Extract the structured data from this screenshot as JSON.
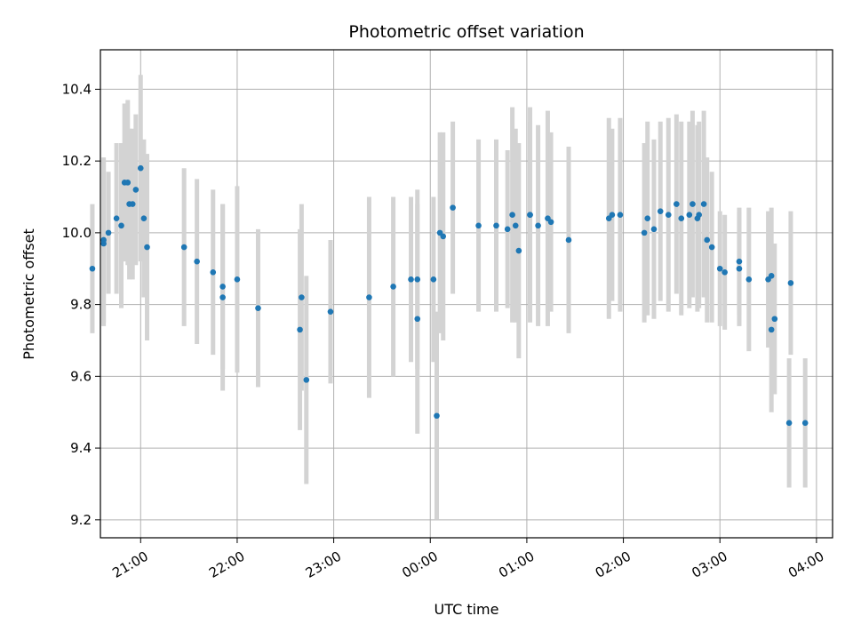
{
  "chart_data": {
    "type": "scatter",
    "title": "Photometric offset variation",
    "xlabel": "UTC time",
    "ylabel": "Photometric offset",
    "xlim": [
      "20:35",
      "04:10"
    ],
    "ylim": [
      9.15,
      10.51
    ],
    "x_ticks": [
      "21:00",
      "22:00",
      "23:00",
      "00:00",
      "01:00",
      "02:00",
      "03:00",
      "04:00"
    ],
    "y_ticks": [
      "9.2",
      "9.4",
      "9.6",
      "9.8",
      "10.0",
      "10.2",
      "10.4"
    ],
    "grid": true,
    "colors": {
      "point": "#1f77b4",
      "errorbar": "#d3d3d3",
      "grid": "#b0b0b0"
    },
    "series": [
      {
        "x": [
          "20:30",
          "20:37",
          "20:37",
          "20:40",
          "20:45",
          "20:48",
          "20:50",
          "20:52",
          "20:53",
          "20:55",
          "20:57",
          "21:00",
          "21:02",
          "21:04",
          "21:27",
          "21:35",
          "21:45",
          "21:51",
          "21:51",
          "22:00",
          "22:13",
          "22:39",
          "22:40",
          "22:43",
          "22:58",
          "23:22",
          "23:37",
          "23:48",
          "23:52",
          "23:52",
          "24:02",
          "24:04",
          "24:06",
          "24:08",
          "24:14",
          "24:30",
          "24:41",
          "24:48",
          "24:51",
          "24:53",
          "24:55",
          "25:02",
          "25:02",
          "25:07",
          "25:13",
          "25:15",
          "25:26",
          "25:51",
          "25:53",
          "25:58",
          "26:13",
          "26:15",
          "26:19",
          "26:23",
          "26:28",
          "26:33",
          "26:36",
          "26:41",
          "26:43",
          "26:46",
          "26:47",
          "26:50",
          "26:52",
          "26:55",
          "27:00",
          "27:03",
          "27:12",
          "27:12",
          "27:18",
          "27:30",
          "27:32",
          "27:32",
          "27:34",
          "27:43",
          "27:44",
          "27:53"
        ],
        "y": [
          9.9,
          9.97,
          9.98,
          10.0,
          10.04,
          10.02,
          10.14,
          10.14,
          10.08,
          10.08,
          10.12,
          10.18,
          10.04,
          9.96,
          9.96,
          9.92,
          9.89,
          9.85,
          9.82,
          9.87,
          9.79,
          9.73,
          9.82,
          9.59,
          9.78,
          9.82,
          9.85,
          9.87,
          9.87,
          9.76,
          9.87,
          9.49,
          10.0,
          9.99,
          10.07,
          10.02,
          10.02,
          10.01,
          10.05,
          10.02,
          9.95,
          10.05,
          10.05,
          10.02,
          10.04,
          10.03,
          9.98,
          10.04,
          10.05,
          10.05,
          10.0,
          10.04,
          10.01,
          10.06,
          10.05,
          10.08,
          10.04,
          10.05,
          10.08,
          10.04,
          10.05,
          10.08,
          9.98,
          9.96,
          9.9,
          9.89,
          9.92,
          9.9,
          9.87,
          9.87,
          9.88,
          9.73,
          9.76,
          9.47,
          9.86,
          9.47
        ],
        "yerr": [
          0.18,
          0.23,
          0.23,
          0.17,
          0.21,
          0.23,
          0.22,
          0.23,
          0.21,
          0.21,
          0.21,
          0.26,
          0.22,
          0.26,
          0.22,
          0.23,
          0.23,
          0.23,
          0.26,
          0.26,
          0.22,
          0.28,
          0.26,
          0.29,
          0.2,
          0.28,
          0.25,
          0.23,
          0.25,
          0.32,
          0.23,
          0.29,
          0.28,
          0.29,
          0.24,
          0.24,
          0.24,
          0.22,
          0.3,
          0.27,
          0.3,
          0.3,
          0.26,
          0.28,
          0.3,
          0.25,
          0.26,
          0.28,
          0.24,
          0.27,
          0.25,
          0.27,
          0.25,
          0.25,
          0.27,
          0.25,
          0.27,
          0.26,
          0.26,
          0.26,
          0.26,
          0.26,
          0.23,
          0.21,
          0.16,
          0.16,
          0.15,
          0.16,
          0.2,
          0.19,
          0.19,
          0.23,
          0.21,
          0.18,
          0.2,
          0.18
        ]
      }
    ]
  }
}
